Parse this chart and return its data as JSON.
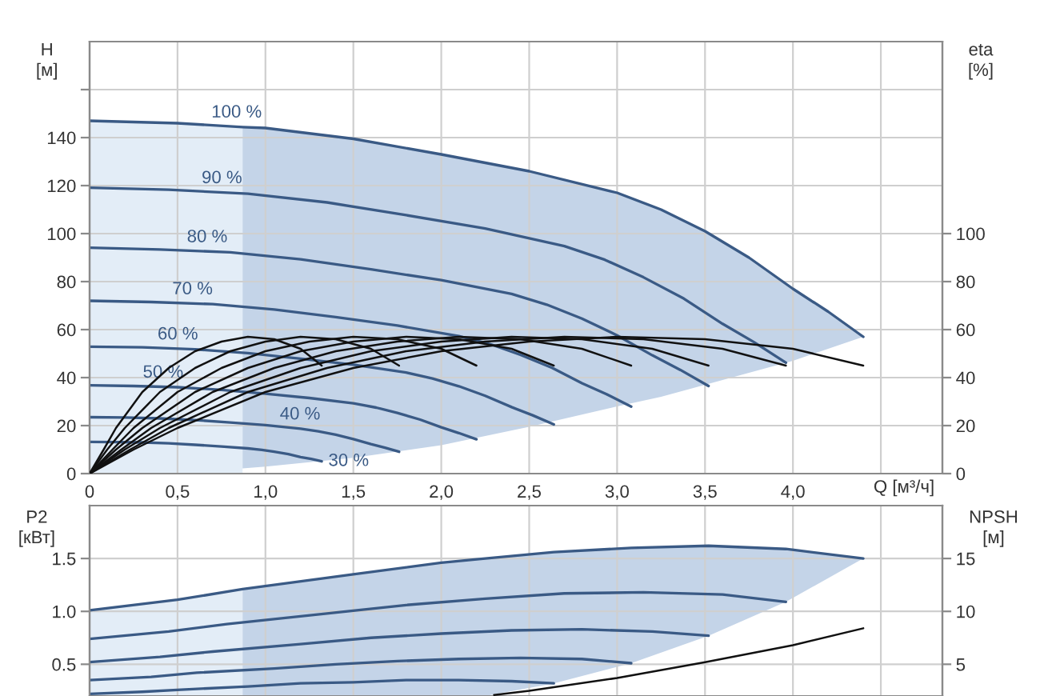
{
  "chart_data": [
    {
      "type": "line",
      "xlabel": "Q [м³/ч]",
      "ylabel": "H\n[м]",
      "y2label": "eta\n[%]",
      "xlim": [
        0,
        4.85
      ],
      "xticks": [
        0,
        {
          "value": 0.5,
          "label": "0,5"
        },
        {
          "value": 1,
          "label": "1,0"
        },
        {
          "value": 1.5,
          "label": "1,5"
        },
        {
          "value": 2,
          "label": "2,0"
        },
        {
          "value": 2.5,
          "label": "2,5"
        },
        {
          "value": 3,
          "label": "3,0"
        },
        {
          "value": 3.5,
          "label": "3,5"
        },
        {
          "value": 4,
          "label": "4,0"
        },
        {
          "value": 4.5,
          "label": null
        }
      ],
      "ylim": [
        0,
        180
      ],
      "yticks": [
        0,
        20,
        40,
        60,
        80,
        100,
        120,
        140,
        {
          "value": 160,
          "label": null
        }
      ],
      "y2lim": [
        0,
        180
      ],
      "y2ticks": [
        0,
        20,
        40,
        60,
        80,
        100
      ],
      "grid": true,
      "series": [
        {
          "type": "area",
          "color": "#e3edf7",
          "x": [
            0,
            0.5,
            0.87
          ],
          "values": [
            147,
            146,
            144.4
          ]
        },
        {
          "name": "100 %",
          "color": "#3a5a85",
          "x": [
            0,
            0.5,
            0.87,
            1.0,
            1.5,
            2.0,
            2.5,
            3.0,
            3.25,
            3.5,
            3.75,
            4.0,
            4.2,
            4.4
          ],
          "values": [
            147,
            146,
            144.4,
            144,
            139.5,
            133,
            126,
            117,
            110,
            101,
            90,
            77,
            67.5,
            57
          ],
          "lower": [
            null,
            null,
            2.2,
            2.9,
            6.6,
            11.8,
            19.5,
            28,
            32,
            37,
            42,
            47,
            52,
            57
          ],
          "upper": [
            null,
            null,
            144.4,
            144,
            139.5,
            133,
            126,
            117,
            110,
            101,
            90,
            77,
            67.5,
            57
          ]
        },
        {
          "name": "90 %",
          "color": "#3a5a85",
          "x": [
            0,
            0.45,
            0.9,
            1.35,
            1.8,
            2.25,
            2.7,
            2.93,
            3.15,
            3.38,
            3.6,
            3.78,
            3.96
          ],
          "values": [
            119.1,
            118.3,
            116.6,
            113.0,
            107.7,
            102.1,
            94.8,
            89.1,
            81.8,
            72.9,
            62.4,
            54.7,
            46.2
          ]
        },
        {
          "name": "80 %",
          "color": "#3a5a85",
          "x": [
            0,
            0.4,
            0.8,
            1.2,
            1.6,
            2.0,
            2.4,
            2.6,
            2.8,
            3.0,
            3.2,
            3.36,
            3.52
          ],
          "values": [
            94.1,
            93.4,
            92.2,
            89.3,
            85.1,
            80.6,
            74.9,
            70.4,
            64.6,
            57.6,
            49.3,
            43.2,
            36.5
          ]
        },
        {
          "name": "70 %",
          "color": "#3a5a85",
          "x": [
            0,
            0.35,
            0.7,
            1.05,
            1.4,
            1.75,
            2.1,
            2.28,
            2.45,
            2.63,
            2.8,
            2.94,
            3.08
          ],
          "values": [
            72.0,
            71.5,
            70.6,
            68.4,
            65.2,
            61.7,
            57.3,
            53.9,
            49.5,
            44.1,
            37.7,
            33.1,
            27.9
          ]
        },
        {
          "name": "60 %",
          "color": "#3a5a85",
          "x": [
            0,
            0.3,
            0.6,
            0.9,
            1.2,
            1.5,
            1.8,
            1.95,
            2.1,
            2.25,
            2.4,
            2.52,
            2.64
          ],
          "values": [
            52.9,
            52.6,
            51.8,
            50.2,
            47.9,
            45.4,
            42.1,
            39.6,
            36.4,
            32.4,
            27.7,
            24.3,
            20.5
          ]
        },
        {
          "name": "50 %",
          "color": "#3a5a85",
          "x": [
            0,
            0.25,
            0.5,
            0.75,
            1.0,
            1.25,
            1.5,
            1.63,
            1.75,
            1.88,
            2.0,
            2.1,
            2.2
          ],
          "values": [
            36.8,
            36.5,
            36.0,
            34.9,
            33.3,
            31.5,
            29.3,
            27.5,
            25.3,
            22.5,
            19.3,
            16.9,
            14.3
          ]
        },
        {
          "name": "40 %",
          "color": "#3a5a85",
          "x": [
            0,
            0.2,
            0.4,
            0.6,
            0.8,
            1.0,
            1.2,
            1.3,
            1.4,
            1.5,
            1.6,
            1.68,
            1.76
          ],
          "values": [
            23.5,
            23.4,
            23.0,
            22.3,
            21.3,
            20.2,
            18.7,
            17.6,
            16.2,
            14.4,
            12.3,
            10.8,
            9.1
          ]
        },
        {
          "name": "30 %",
          "color": "#3a5a85",
          "x": [
            0,
            0.15,
            0.3,
            0.45,
            0.6,
            0.75,
            0.9,
            0.98,
            1.05,
            1.13,
            1.2,
            1.26,
            1.32
          ],
          "values": [
            13.2,
            13.1,
            13.0,
            12.6,
            12.0,
            11.3,
            10.5,
            9.9,
            9.1,
            8.1,
            6.9,
            6.1,
            5.1
          ]
        },
        {
          "axis": "y2",
          "color": "#111111",
          "x": [
            0,
            0.25,
            0.5,
            1.0,
            1.5,
            2.0,
            2.5,
            3.0,
            3.5,
            4.0,
            4.4
          ],
          "values": [
            0,
            10,
            19,
            34,
            44,
            51,
            55,
            57,
            56,
            52,
            45
          ]
        },
        {
          "axis": "y2",
          "color": "#111111",
          "x": [
            0,
            0.23,
            0.45,
            0.9,
            1.35,
            1.8,
            2.25,
            2.7,
            3.15,
            3.6,
            3.96
          ],
          "values": [
            0,
            10,
            19,
            34,
            44,
            51,
            55,
            57,
            56,
            52,
            45
          ]
        },
        {
          "axis": "y2",
          "color": "#111111",
          "x": [
            0,
            0.2,
            0.4,
            0.8,
            1.2,
            1.6,
            2.0,
            2.4,
            2.8,
            3.2,
            3.52
          ],
          "values": [
            0,
            10,
            19,
            34,
            44,
            51,
            55,
            57,
            56,
            52,
            45
          ]
        },
        {
          "axis": "y2",
          "color": "#111111",
          "x": [
            0,
            0.18,
            0.35,
            0.7,
            1.05,
            1.4,
            1.75,
            2.1,
            2.45,
            2.8,
            3.08
          ],
          "values": [
            0,
            10,
            19,
            34,
            44,
            51,
            55,
            57,
            56,
            52,
            45
          ]
        },
        {
          "axis": "y2",
          "color": "#111111",
          "x": [
            0,
            0.15,
            0.3,
            0.6,
            0.9,
            1.2,
            1.5,
            1.8,
            2.1,
            2.4,
            2.64
          ],
          "values": [
            0,
            10,
            19,
            34,
            44,
            51,
            55,
            57,
            56,
            52,
            45
          ]
        },
        {
          "axis": "y2",
          "color": "#111111",
          "x": [
            0,
            0.13,
            0.25,
            0.5,
            0.75,
            1.0,
            1.25,
            1.5,
            1.75,
            2.0,
            2.2
          ],
          "values": [
            0,
            10,
            19,
            34,
            44,
            51,
            55,
            57,
            56,
            52,
            45
          ]
        },
        {
          "axis": "y2",
          "color": "#111111",
          "x": [
            0,
            0.1,
            0.2,
            0.4,
            0.6,
            0.8,
            1.0,
            1.2,
            1.4,
            1.6,
            1.76
          ],
          "values": [
            0,
            10,
            19,
            34,
            44,
            51,
            55,
            57,
            56,
            52,
            45
          ]
        },
        {
          "axis": "y2",
          "color": "#111111",
          "x": [
            0,
            0.08,
            0.15,
            0.3,
            0.45,
            0.6,
            0.75,
            0.9,
            1.05,
            1.2,
            1.32
          ],
          "values": [
            0,
            10,
            19,
            34,
            44,
            51,
            55,
            57,
            56,
            52,
            45
          ]
        }
      ]
    },
    {
      "type": "line",
      "ylabel": "P2\n[кВт]",
      "y2label": "NPSH\n[м]",
      "xlim": [
        0,
        4.85
      ],
      "xticks": [
        {
          "value": 0,
          "label": null
        },
        {
          "value": 0.5,
          "label": null
        },
        {
          "value": 1,
          "label": null
        },
        {
          "value": 1.5,
          "label": null
        },
        {
          "value": 2,
          "label": null
        },
        {
          "value": 2.5,
          "label": null
        },
        {
          "value": 3,
          "label": null
        },
        {
          "value": 3.5,
          "label": null
        },
        {
          "value": 4,
          "label": null
        },
        {
          "value": 4.5,
          "label": null
        }
      ],
      "ylim": [
        0.2,
        2
      ],
      "yticks": [
        0.5,
        {
          "value": 1,
          "label": "1.0"
        },
        1.5
      ],
      "y2lim": [
        2,
        20
      ],
      "y2ticks": [
        5,
        10,
        15
      ],
      "grid": true,
      "tick_labels": "y",
      "series": [
        {
          "type": "area",
          "color": "#e3edf7",
          "x": [
            0,
            0.5,
            0.87
          ],
          "values": [
            1.01,
            1.11,
            1.21
          ]
        },
        {
          "color": "#3a5a85",
          "x": [
            0,
            0.5,
            0.87,
            1.5,
            2.0,
            2.25,
            2.64,
            3.08,
            3.52,
            3.96,
            4.4
          ],
          "values": [
            1.01,
            1.11,
            1.21,
            1.35,
            1.46,
            1.5,
            1.56,
            1.6,
            1.62,
            1.59,
            1.5
          ],
          "lower": [
            null,
            null,
            0.2,
            0.2,
            0.2,
            0.2,
            0.32,
            0.51,
            0.77,
            1.09,
            1.5
          ],
          "upper": [
            null,
            null,
            1.21,
            1.35,
            1.46,
            1.5,
            1.56,
            1.6,
            1.62,
            1.59,
            1.5
          ]
        },
        {
          "color": "#3a5a85",
          "x": [
            0,
            0.45,
            0.78,
            1.35,
            1.8,
            2.25,
            2.7,
            3.15,
            3.6,
            3.96
          ],
          "values": [
            0.74,
            0.81,
            0.88,
            0.98,
            1.06,
            1.12,
            1.17,
            1.18,
            1.16,
            1.09
          ]
        },
        {
          "color": "#3a5a85",
          "x": [
            0,
            0.4,
            0.7,
            1.2,
            1.6,
            2.0,
            2.4,
            2.8,
            3.2,
            3.52
          ],
          "values": [
            0.52,
            0.57,
            0.62,
            0.69,
            0.75,
            0.79,
            0.82,
            0.83,
            0.81,
            0.77
          ]
        },
        {
          "color": "#3a5a85",
          "x": [
            0,
            0.35,
            0.61,
            1.05,
            1.4,
            1.75,
            2.1,
            2.45,
            2.8,
            3.08
          ],
          "values": [
            0.35,
            0.38,
            0.42,
            0.46,
            0.5,
            0.53,
            0.55,
            0.56,
            0.55,
            0.51
          ]
        },
        {
          "color": "#3a5a85",
          "x": [
            0,
            0.3,
            0.52,
            0.9,
            1.2,
            1.5,
            1.8,
            2.1,
            2.4,
            2.64
          ],
          "values": [
            0.22,
            0.24,
            0.26,
            0.29,
            0.32,
            0.33,
            0.35,
            0.35,
            0.34,
            0.32
          ]
        },
        {
          "axis": "y2",
          "color": "#111111",
          "x": [
            2.3,
            2.5,
            3.0,
            3.5,
            4.0,
            4.4
          ],
          "values": [
            2.1,
            2.5,
            3.7,
            5.2,
            6.8,
            8.4
          ]
        }
      ]
    }
  ]
}
